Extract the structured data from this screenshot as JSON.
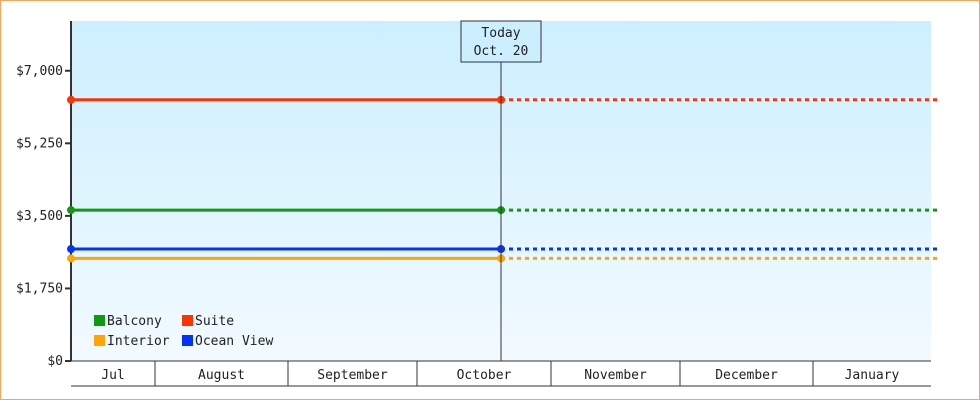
{
  "chart_data": {
    "type": "line",
    "title": "",
    "xlabel": "",
    "ylabel": "",
    "ylim": [
      0,
      8200
    ],
    "yticks": [
      0,
      1750,
      3500,
      5250,
      7000
    ],
    "ytick_labels": [
      "$0",
      "$1,750",
      "$3,500",
      "$5,250",
      "$7,000"
    ],
    "x_categories": [
      "Jul",
      "August",
      "September",
      "October",
      "November",
      "December",
      "January"
    ],
    "grid": false,
    "legend_placement": "bottom-left",
    "today_marker": {
      "line1": "Today",
      "line2": "Oct. 20"
    },
    "series": [
      {
        "name": "Balcony",
        "color": "#119911",
        "value": 3640
      },
      {
        "name": "Suite",
        "color": "#ff3300",
        "value": 6300
      },
      {
        "name": "Interior",
        "color": "#ffa500",
        "value": 2475
      },
      {
        "name": "Ocean View",
        "color": "#0033ff",
        "value": 2700
      }
    ],
    "line_style": {
      "past": "solid",
      "future": "dotted"
    }
  }
}
